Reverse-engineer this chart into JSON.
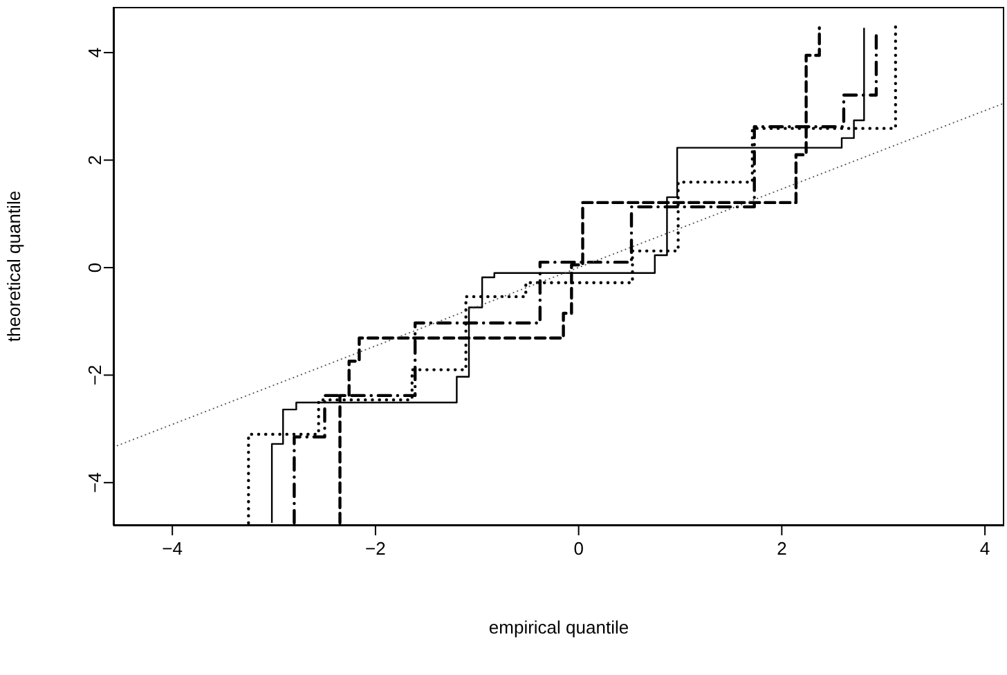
{
  "chart_data": {
    "type": "step",
    "xlabel": "empirical quantile",
    "ylabel": "theoretical quantile",
    "xlim": [
      -4.58,
      4.19
    ],
    "ylim": [
      -4.8,
      4.85
    ],
    "xticks": [
      {
        "value": -4,
        "label": "−4"
      },
      {
        "value": -2,
        "label": "−2"
      },
      0,
      2,
      4
    ],
    "yticks": [
      {
        "value": -4,
        "label": "−4"
      },
      {
        "value": -2,
        "label": "−2"
      },
      0,
      2,
      4
    ],
    "grid": false,
    "legend": false,
    "marker": "none",
    "series": [
      {
        "color": "#000000",
        "line_style": "solid",
        "x": [
          -3.02,
          -3.02,
          -2.91,
          -2.78,
          -1.2,
          -1.08,
          -0.95,
          -0.83,
          0.75,
          0.87,
          0.97,
          2.59,
          2.71,
          2.81
        ],
        "values": [
          -4.75,
          -3.28,
          -2.64,
          -2.51,
          -2.03,
          -0.74,
          -0.18,
          -0.1,
          0.23,
          1.31,
          2.23,
          2.41,
          2.74,
          4.46
        ]
      },
      {
        "color": "#000000",
        "line_style": "dashed",
        "x": [
          -2.35,
          -2.35,
          -2.26,
          -2.16,
          -0.15,
          -0.07,
          0.04,
          2.14,
          2.24,
          2.37
        ],
        "values": [
          -4.75,
          -2.38,
          -1.74,
          -1.31,
          -0.85,
          0.05,
          1.21,
          2.1,
          3.95,
          4.46
        ]
      },
      {
        "color": "#000000",
        "line_style": "dotted",
        "x": [
          -3.25,
          -3.25,
          -2.56,
          -1.64,
          -1.11,
          -0.52,
          0.53,
          0.98,
          1.71,
          3.12,
          3.12
        ],
        "values": [
          -4.75,
          -3.1,
          -2.46,
          -1.9,
          -0.54,
          -0.28,
          0.31,
          1.59,
          2.59,
          2.87,
          4.51
        ]
      },
      {
        "color": "#000000",
        "line_style": "dashdot",
        "x": [
          -2.8,
          -2.8,
          -2.5,
          -1.61,
          -0.38,
          0.52,
          1.73,
          2.61,
          2.93
        ],
        "values": [
          -4.75,
          -3.15,
          -2.38,
          -1.03,
          0.1,
          1.13,
          2.62,
          3.21,
          4.41
        ]
      },
      {
        "type": "line",
        "color": "#555555",
        "line_style": "dotted",
        "x": [
          -4.58,
          4.19
        ],
        "values": [
          -3.34,
          3.06
        ]
      }
    ]
  }
}
